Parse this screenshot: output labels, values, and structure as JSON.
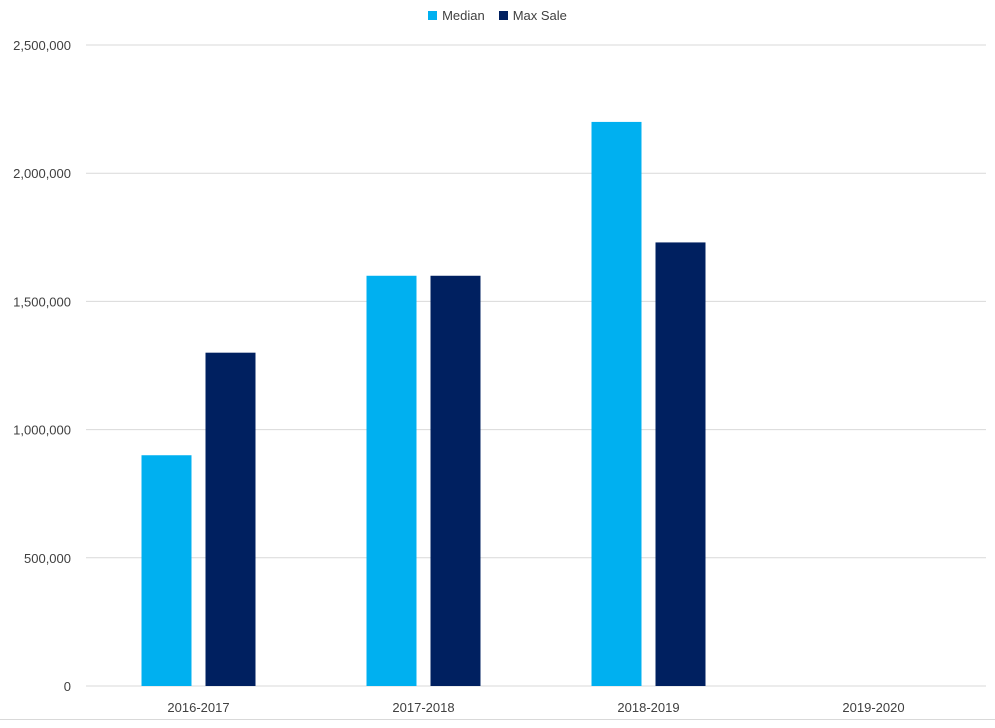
{
  "chart_data": {
    "type": "bar",
    "categories": [
      "2016-2017",
      "2017-2018",
      "2018-2019",
      "2019-2020"
    ],
    "series": [
      {
        "name": "Median",
        "values": [
          900000,
          1600000,
          2200000,
          null
        ],
        "color": "#00b0f0"
      },
      {
        "name": "Max Sale",
        "values": [
          1300000,
          1600000,
          1730000,
          null
        ],
        "color": "#002060"
      }
    ],
    "title": "",
    "xlabel": "",
    "ylabel": "",
    "ylim": [
      0,
      2500000
    ],
    "yticks": [
      0,
      500000,
      1000000,
      1500000,
      2000000,
      2500000
    ],
    "ytick_labels": [
      "0",
      "500,000",
      "1,000,000",
      "1,500,000",
      "2,000,000",
      "2,500,000"
    ],
    "grid": true,
    "legend_position": "top-center"
  }
}
